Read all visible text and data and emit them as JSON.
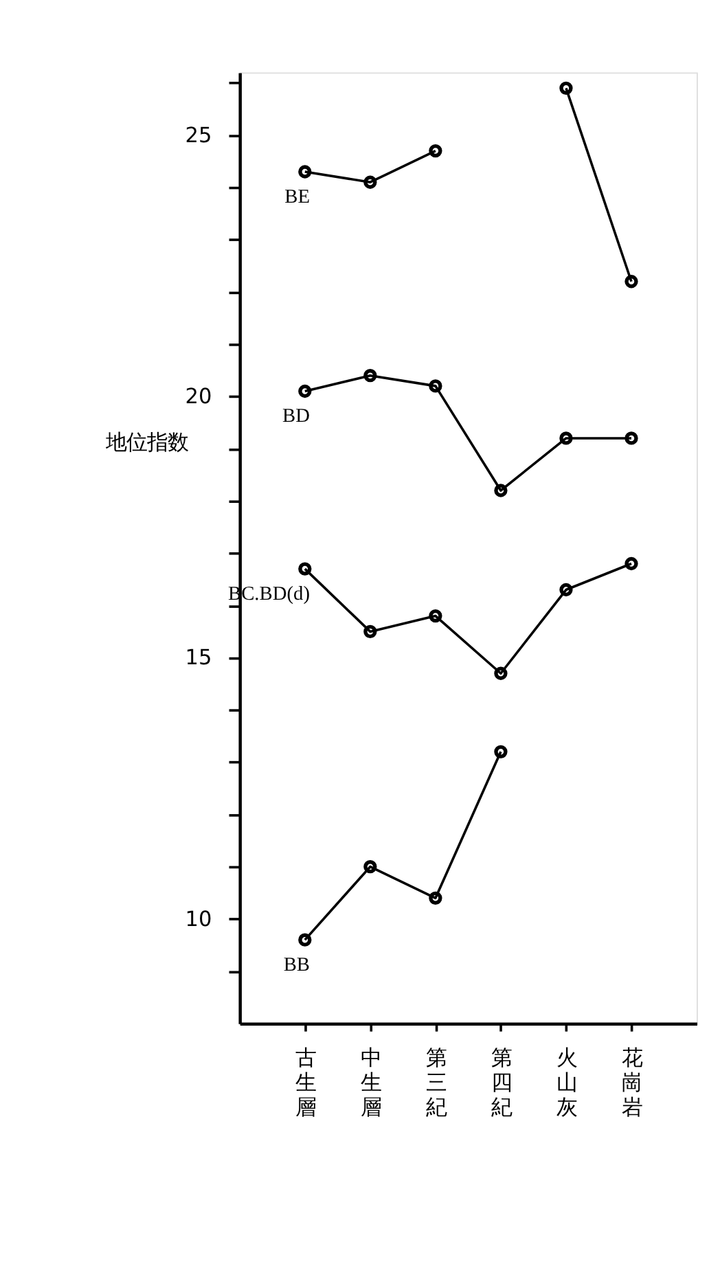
{
  "chart_data": {
    "type": "line",
    "ylabel": "地位指数",
    "categories": [
      "古生層",
      "中生層",
      "第三紀",
      "第四紀",
      "火山灰",
      "花崗岩"
    ],
    "series": [
      {
        "name": "BE",
        "color": "#000000",
        "values": [
          24.3,
          24.1,
          24.7,
          null,
          25.9,
          22.2
        ]
      },
      {
        "name": "BD",
        "color": "#000000",
        "values": [
          20.1,
          20.4,
          20.2,
          18.2,
          19.2,
          19.2
        ]
      },
      {
        "name": "BC.BD(d)",
        "color": "#000000",
        "values": [
          16.7,
          15.5,
          15.8,
          14.7,
          16.3,
          16.8
        ]
      },
      {
        "name": "BB",
        "color": "#000000",
        "values": [
          9.6,
          11.0,
          10.4,
          13.2,
          null,
          null
        ]
      }
    ],
    "ylim": [
      8,
      26.2
    ],
    "yticks": [
      {
        "value": 9,
        "label": null
      },
      10,
      {
        "value": 11,
        "label": null
      },
      {
        "value": 12,
        "label": null
      },
      {
        "value": 13,
        "label": null
      },
      {
        "value": 14,
        "label": null
      },
      15,
      {
        "value": 16,
        "label": null
      },
      {
        "value": 17,
        "label": null
      },
      {
        "value": 18,
        "label": null
      },
      {
        "value": 19,
        "label": null
      },
      20,
      {
        "value": 21,
        "label": null
      },
      {
        "value": 22,
        "label": null
      },
      {
        "value": 23,
        "label": null
      },
      {
        "value": 24,
        "label": null
      },
      25,
      {
        "value": 26,
        "label": null
      }
    ],
    "grid": false,
    "legend": false,
    "marker": "circle",
    "line_style": "solid"
  }
}
